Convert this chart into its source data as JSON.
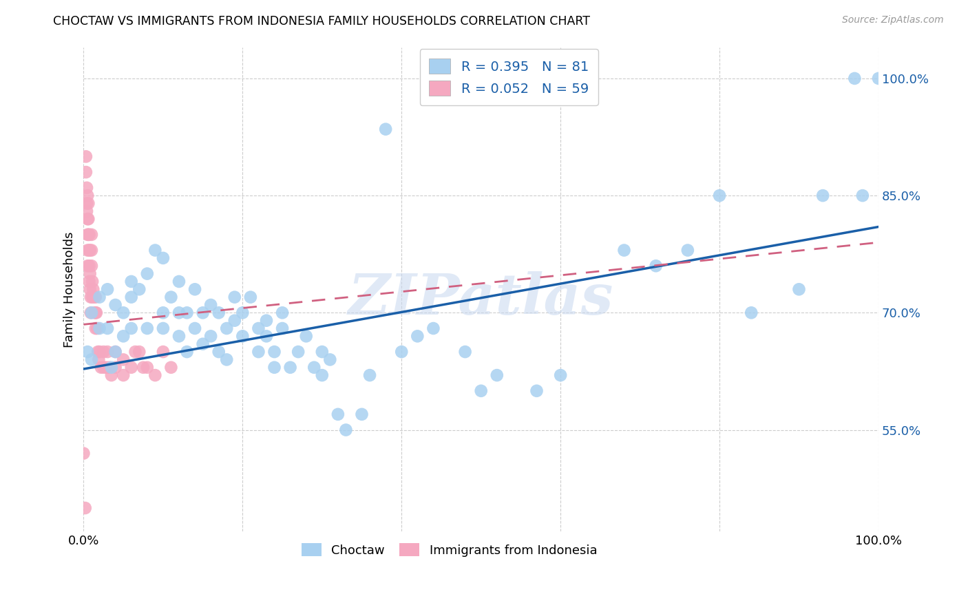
{
  "title": "CHOCTAW VS IMMIGRANTS FROM INDONESIA FAMILY HOUSEHOLDS CORRELATION CHART",
  "source": "Source: ZipAtlas.com",
  "ylabel": "Family Households",
  "xlim": [
    0.0,
    1.0
  ],
  "ylim": [
    0.42,
    1.04
  ],
  "yticks": [
    0.55,
    0.7,
    0.85,
    1.0
  ],
  "ytick_labels": [
    "55.0%",
    "70.0%",
    "85.0%",
    "100.0%"
  ],
  "legend_label_blue": "Choctaw",
  "legend_label_pink": "Immigrants from Indonesia",
  "blue_color": "#A8D0F0",
  "pink_color": "#F5A8C0",
  "blue_line_color": "#1A5FA8",
  "pink_line_color": "#D06080",
  "watermark": "ZIPatlas",
  "blue_line_x0": 0.0,
  "blue_line_y0": 0.628,
  "blue_line_x1": 1.0,
  "blue_line_y1": 0.81,
  "pink_line_x0": 0.0,
  "pink_line_y0": 0.685,
  "pink_line_x1": 1.0,
  "pink_line_y1": 0.79,
  "blue_x": [
    0.005,
    0.01,
    0.01,
    0.02,
    0.02,
    0.03,
    0.03,
    0.035,
    0.04,
    0.04,
    0.05,
    0.05,
    0.06,
    0.06,
    0.06,
    0.07,
    0.08,
    0.08,
    0.09,
    0.1,
    0.1,
    0.1,
    0.11,
    0.12,
    0.12,
    0.12,
    0.13,
    0.13,
    0.14,
    0.14,
    0.15,
    0.15,
    0.16,
    0.16,
    0.17,
    0.17,
    0.18,
    0.18,
    0.19,
    0.19,
    0.2,
    0.2,
    0.21,
    0.22,
    0.22,
    0.23,
    0.23,
    0.24,
    0.24,
    0.25,
    0.25,
    0.26,
    0.27,
    0.28,
    0.29,
    0.3,
    0.3,
    0.31,
    0.32,
    0.33,
    0.35,
    0.36,
    0.38,
    0.4,
    0.42,
    0.44,
    0.48,
    0.5,
    0.52,
    0.57,
    0.6,
    0.68,
    0.72,
    0.76,
    0.8,
    0.84,
    0.9,
    0.93,
    0.97,
    0.98,
    1.0
  ],
  "blue_y": [
    0.65,
    0.7,
    0.64,
    0.68,
    0.72,
    0.68,
    0.73,
    0.63,
    0.71,
    0.65,
    0.67,
    0.7,
    0.72,
    0.68,
    0.74,
    0.73,
    0.75,
    0.68,
    0.78,
    0.7,
    0.77,
    0.68,
    0.72,
    0.74,
    0.7,
    0.67,
    0.7,
    0.65,
    0.73,
    0.68,
    0.7,
    0.66,
    0.67,
    0.71,
    0.65,
    0.7,
    0.68,
    0.64,
    0.69,
    0.72,
    0.67,
    0.7,
    0.72,
    0.68,
    0.65,
    0.69,
    0.67,
    0.63,
    0.65,
    0.68,
    0.7,
    0.63,
    0.65,
    0.67,
    0.63,
    0.62,
    0.65,
    0.64,
    0.57,
    0.55,
    0.57,
    0.62,
    0.935,
    0.65,
    0.67,
    0.68,
    0.65,
    0.6,
    0.62,
    0.6,
    0.62,
    0.78,
    0.76,
    0.78,
    0.85,
    0.7,
    0.73,
    0.85,
    1.0,
    0.85,
    1.0
  ],
  "pink_x": [
    0.002,
    0.003,
    0.003,
    0.004,
    0.004,
    0.004,
    0.005,
    0.005,
    0.005,
    0.005,
    0.005,
    0.006,
    0.006,
    0.006,
    0.007,
    0.007,
    0.007,
    0.007,
    0.008,
    0.008,
    0.008,
    0.009,
    0.009,
    0.01,
    0.01,
    0.01,
    0.011,
    0.011,
    0.012,
    0.013,
    0.014,
    0.015,
    0.015,
    0.015,
    0.016,
    0.017,
    0.018,
    0.019,
    0.02,
    0.022,
    0.025,
    0.025,
    0.028,
    0.03,
    0.032,
    0.035,
    0.04,
    0.04,
    0.05,
    0.05,
    0.06,
    0.065,
    0.07,
    0.075,
    0.08,
    0.09,
    0.1,
    0.11,
    0.0
  ],
  "pink_y": [
    0.45,
    0.9,
    0.88,
    0.86,
    0.84,
    0.83,
    0.85,
    0.82,
    0.8,
    0.78,
    0.76,
    0.84,
    0.82,
    0.8,
    0.8,
    0.78,
    0.76,
    0.74,
    0.78,
    0.75,
    0.73,
    0.72,
    0.7,
    0.8,
    0.78,
    0.76,
    0.74,
    0.72,
    0.73,
    0.72,
    0.7,
    0.72,
    0.7,
    0.68,
    0.7,
    0.68,
    0.65,
    0.64,
    0.65,
    0.63,
    0.65,
    0.63,
    0.63,
    0.65,
    0.63,
    0.62,
    0.65,
    0.63,
    0.64,
    0.62,
    0.63,
    0.65,
    0.65,
    0.63,
    0.63,
    0.62,
    0.65,
    0.63,
    0.52
  ]
}
